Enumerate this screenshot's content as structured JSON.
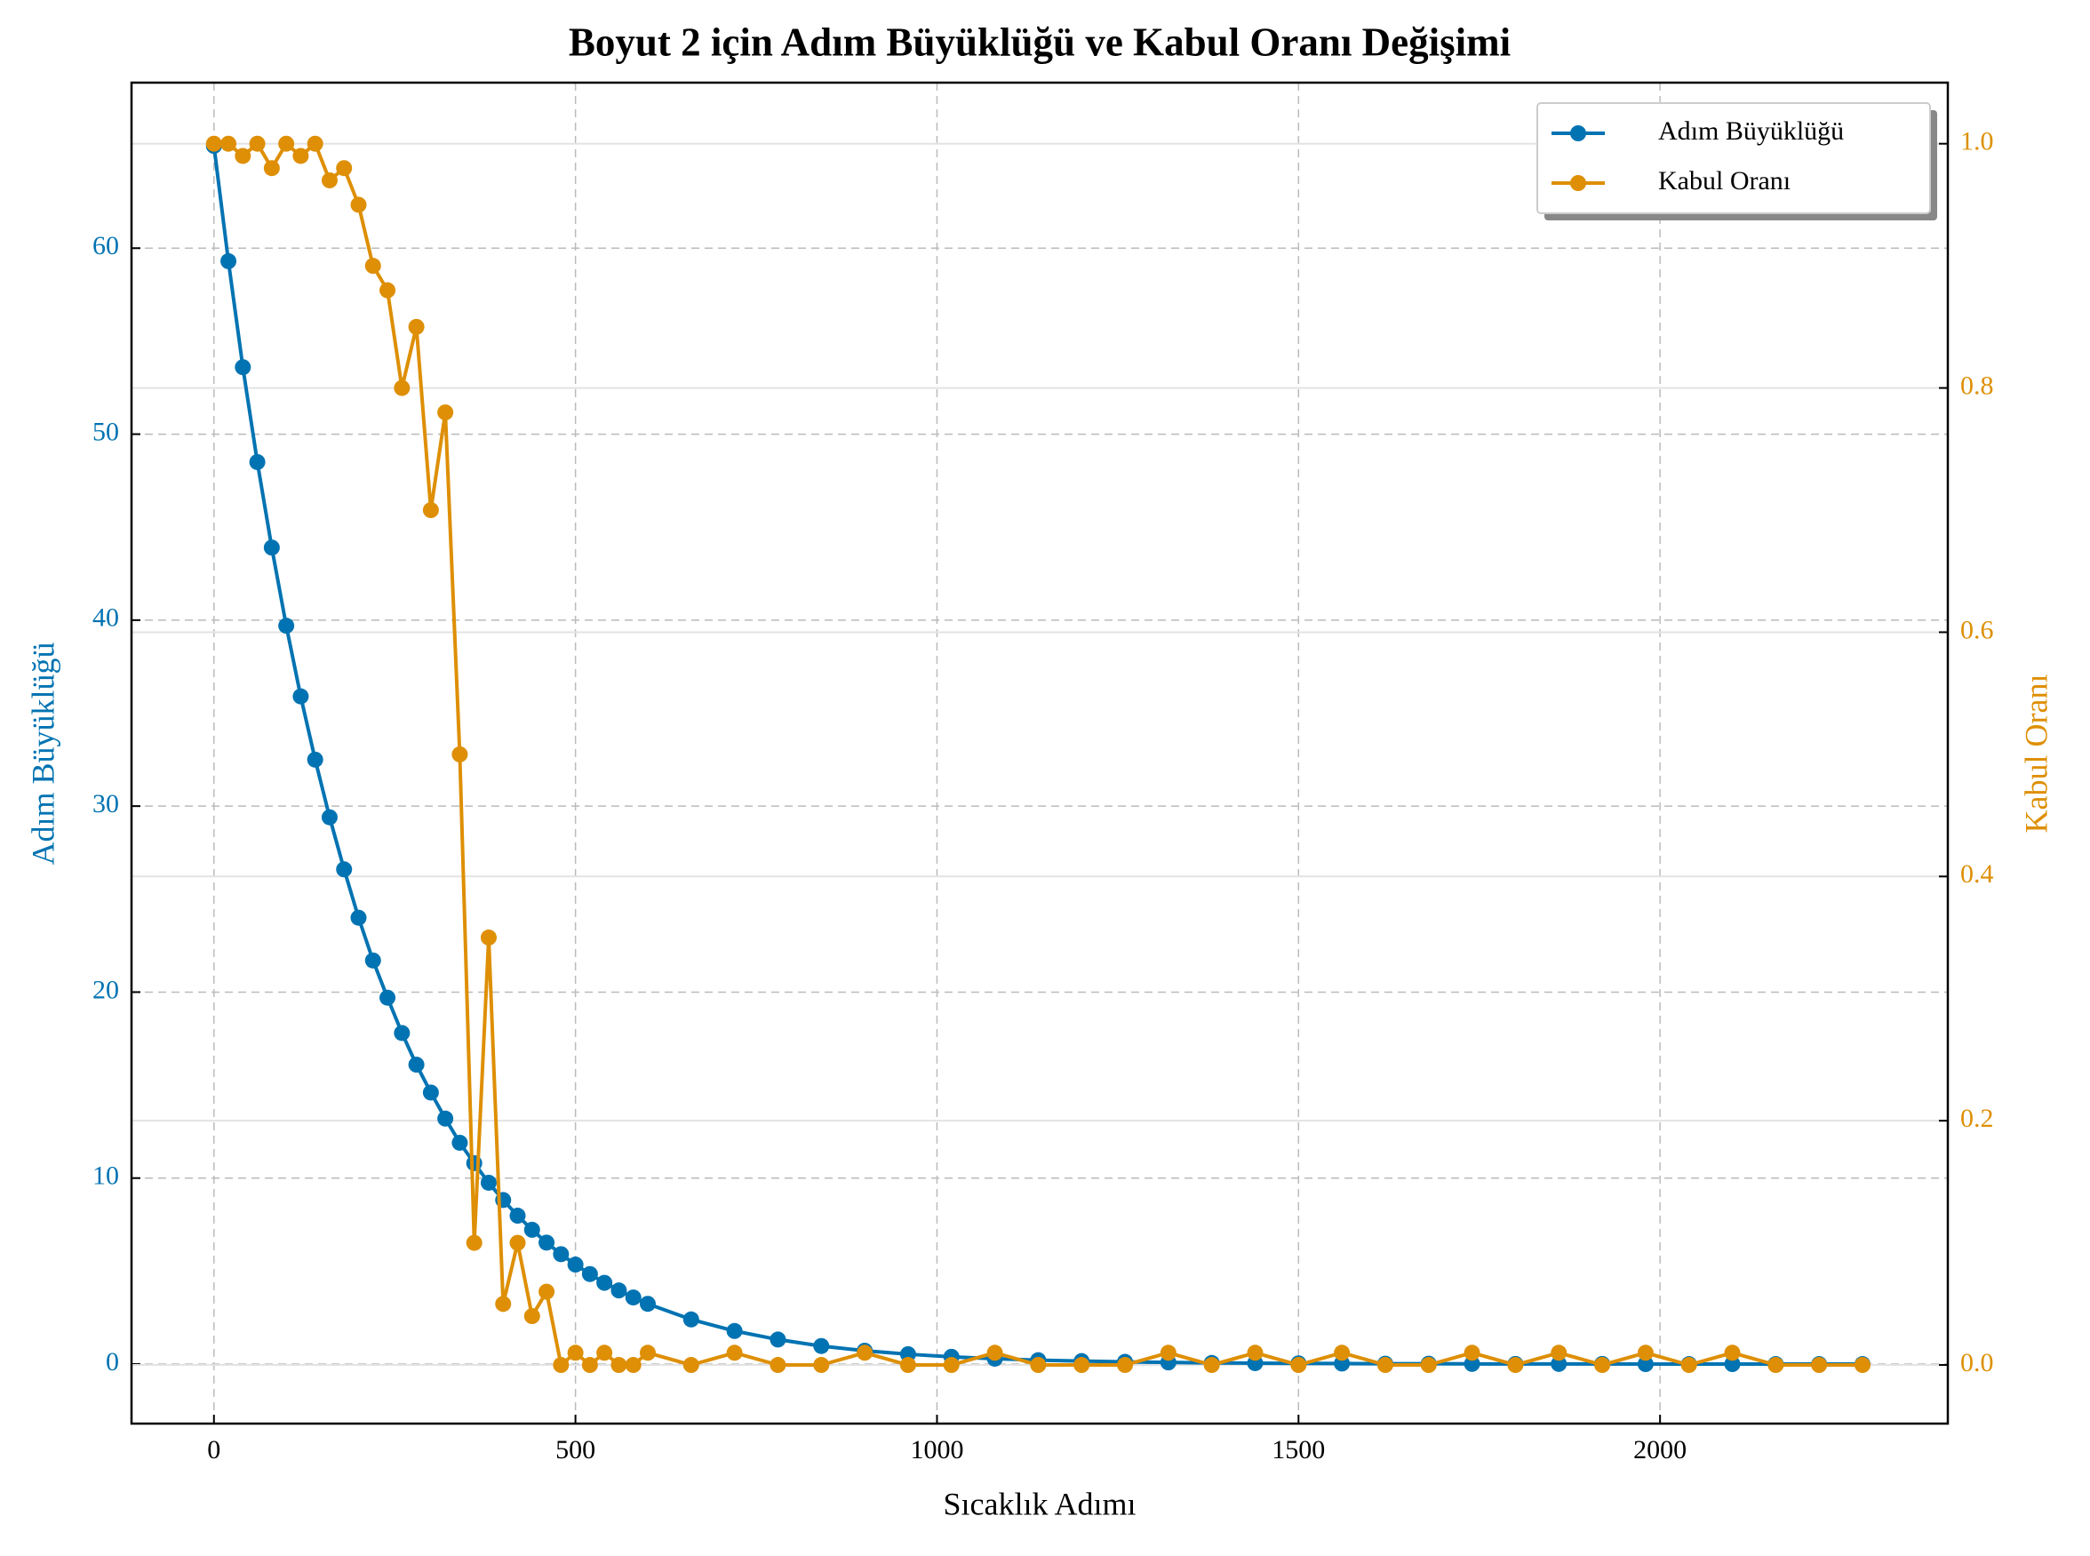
{
  "chart_data": {
    "type": "line",
    "title": "Boyut 2 için Adım Büyüklüğü ve Kabul Oranı Değişimi",
    "x_label": "Sıcaklık Adımı",
    "y_label": "Adım Büyüklüğü",
    "y2_label": "Kabul Oranı",
    "x": [
      0,
      20,
      40,
      60,
      80,
      100,
      120,
      140,
      160,
      180,
      200,
      220,
      240,
      260,
      280,
      300,
      320,
      340,
      360,
      380,
      400,
      420,
      440,
      460,
      480,
      500,
      520,
      540,
      560,
      580,
      600,
      660,
      720,
      780,
      840,
      900,
      960,
      1020,
      1080,
      1140,
      1200,
      1260,
      1320,
      1380,
      1440,
      1500,
      1560,
      1620,
      1680,
      1740,
      1800,
      1860,
      1920,
      1980,
      2040,
      2100,
      2160,
      2220,
      2280
    ],
    "series": [
      {
        "name": "Adım Büyüklüğü",
        "color": "#0173b2",
        "axis": "y",
        "values": [
          65.5,
          59.3,
          53.6,
          48.5,
          43.9,
          39.7,
          35.9,
          32.5,
          29.4,
          26.6,
          24.0,
          21.7,
          19.7,
          17.8,
          16.1,
          14.6,
          13.2,
          11.9,
          10.8,
          9.75,
          8.82,
          7.98,
          7.22,
          6.53,
          5.91,
          5.35,
          4.84,
          4.37,
          3.96,
          3.58,
          3.24,
          2.4,
          1.78,
          1.32,
          0.97,
          0.72,
          0.53,
          0.39,
          0.29,
          0.21,
          0.16,
          0.12,
          0.09,
          0.06,
          0.05,
          0.04,
          0.03,
          0.02,
          0.02,
          0.01,
          0.01,
          0.01,
          0.01,
          0,
          0,
          0,
          0,
          0,
          0
        ]
      },
      {
        "name": "Kabul Oranı",
        "color": "#de8f05",
        "axis": "y2",
        "values": [
          1.0,
          1.0,
          0.99,
          1.0,
          0.98,
          1.0,
          0.99,
          1.0,
          0.97,
          0.98,
          0.95,
          0.9,
          0.88,
          0.8,
          0.85,
          0.7,
          0.78,
          0.5,
          0.1,
          0.35,
          0.05,
          0.1,
          0.04,
          0.06,
          0,
          0.01,
          0,
          0.01,
          0,
          0,
          0.01,
          0,
          0.01,
          0,
          0,
          0.01,
          0,
          0,
          0.01,
          0,
          0,
          0,
          0.01,
          0,
          0.01,
          0,
          0.01,
          0,
          0,
          0.01,
          0,
          0.01,
          0,
          0.01,
          0,
          0.01,
          0,
          0,
          0
        ]
      }
    ],
    "xlim": [
      -114,
      2398
    ],
    "xticks": [
      0,
      500,
      1000,
      1500,
      2000
    ],
    "ylim": [
      -3.2,
      68.9
    ],
    "yticks": [
      0,
      10,
      20,
      30,
      40,
      50,
      60
    ],
    "y2lim": [
      -0.048,
      1.05
    ],
    "y2ticks": [
      {
        "value": 0,
        "label": "0.0"
      },
      0.2,
      0.4,
      0.6,
      0.8,
      {
        "value": 1,
        "label": "1.0"
      }
    ],
    "grid": true,
    "legend": "upper right"
  }
}
